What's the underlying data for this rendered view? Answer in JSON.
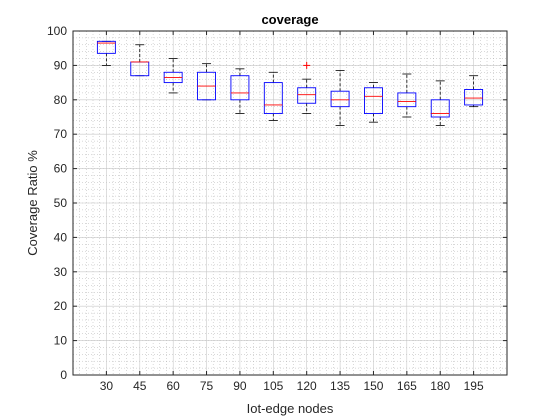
{
  "chart_data": {
    "type": "box",
    "title": "coverage",
    "xlabel": "Iot-edge nodes",
    "ylabel": "Coverage Ratio %",
    "ylim": [
      0,
      100
    ],
    "yticks": [
      0,
      10,
      20,
      30,
      40,
      50,
      60,
      70,
      80,
      90,
      100
    ],
    "grid": "on (major and minor, dotted)",
    "categories": [
      "30",
      "45",
      "60",
      "75",
      "90",
      "105",
      "120",
      "135",
      "150",
      "165",
      "180",
      "195"
    ],
    "boxes": [
      {
        "category": "30",
        "whisker_low": 90.0,
        "q1": 93.5,
        "median": 96.5,
        "q3": 97.0,
        "whisker_high": 97.0,
        "outliers": []
      },
      {
        "category": "45",
        "whisker_low": 87.0,
        "q1": 87.0,
        "median": 91.0,
        "q3": 91.0,
        "whisker_high": 96.0,
        "outliers": []
      },
      {
        "category": "60",
        "whisker_low": 82.0,
        "q1": 85.0,
        "median": 86.5,
        "q3": 88.0,
        "whisker_high": 92.0,
        "outliers": []
      },
      {
        "category": "75",
        "whisker_low": 80.0,
        "q1": 80.0,
        "median": 84.0,
        "q3": 88.0,
        "whisker_high": 90.5,
        "outliers": []
      },
      {
        "category": "90",
        "whisker_low": 76.0,
        "q1": 80.0,
        "median": 82.0,
        "q3": 87.0,
        "whisker_high": 89.0,
        "outliers": []
      },
      {
        "category": "105",
        "whisker_low": 74.0,
        "q1": 76.0,
        "median": 78.5,
        "q3": 85.0,
        "whisker_high": 88.0,
        "outliers": []
      },
      {
        "category": "120",
        "whisker_low": 76.0,
        "q1": 79.0,
        "median": 81.5,
        "q3": 83.5,
        "whisker_high": 86.0,
        "outliers": [
          90.0
        ]
      },
      {
        "category": "135",
        "whisker_low": 72.5,
        "q1": 78.0,
        "median": 80.0,
        "q3": 82.5,
        "whisker_high": 88.5,
        "outliers": []
      },
      {
        "category": "150",
        "whisker_low": 73.5,
        "q1": 76.0,
        "median": 81.0,
        "q3": 83.5,
        "whisker_high": 85.0,
        "outliers": []
      },
      {
        "category": "165",
        "whisker_low": 75.0,
        "q1": 78.0,
        "median": 79.5,
        "q3": 82.0,
        "whisker_high": 87.5,
        "outliers": []
      },
      {
        "category": "180",
        "whisker_low": 72.5,
        "q1": 75.0,
        "median": 76.0,
        "q3": 80.0,
        "whisker_high": 85.5,
        "outliers": []
      },
      {
        "category": "195",
        "whisker_low": 78.0,
        "q1": 78.5,
        "median": 80.5,
        "q3": 83.0,
        "whisker_high": 87.0,
        "outliers": []
      }
    ],
    "colors": {
      "box": "#0000ff",
      "median": "#ff0000",
      "whisker": "#000000",
      "outlier": "#ff0000",
      "grid": "#a0a0a0",
      "axis": "#262626"
    }
  }
}
